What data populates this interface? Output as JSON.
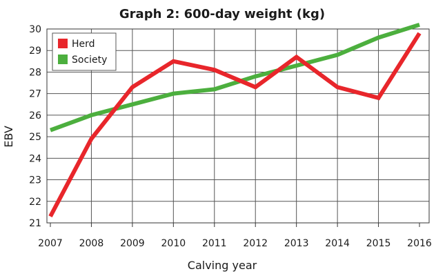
{
  "chart_data": {
    "type": "line",
    "title": "Graph 2: 600-day weight (kg)",
    "xlabel": "Calving year",
    "ylabel": "EBV",
    "categories": [
      "2007",
      "2008",
      "2009",
      "2010",
      "2011",
      "2012",
      "2013",
      "2014",
      "2015",
      "2016"
    ],
    "ylim": [
      21,
      30
    ],
    "yticks": [
      "21",
      "22",
      "23",
      "24",
      "25",
      "26",
      "27",
      "28",
      "29",
      "30"
    ],
    "grid": true,
    "legend_position": "top-left",
    "series": [
      {
        "name": "Herd",
        "color": "#e8262b",
        "values": [
          21.3,
          24.9,
          27.3,
          28.5,
          28.1,
          27.3,
          28.7,
          27.3,
          26.8,
          29.8
        ]
      },
      {
        "name": "Society",
        "color": "#4caf3e",
        "values": [
          25.3,
          26.0,
          26.5,
          27.0,
          27.2,
          27.8,
          28.3,
          28.8,
          29.6,
          30.2
        ]
      }
    ]
  }
}
